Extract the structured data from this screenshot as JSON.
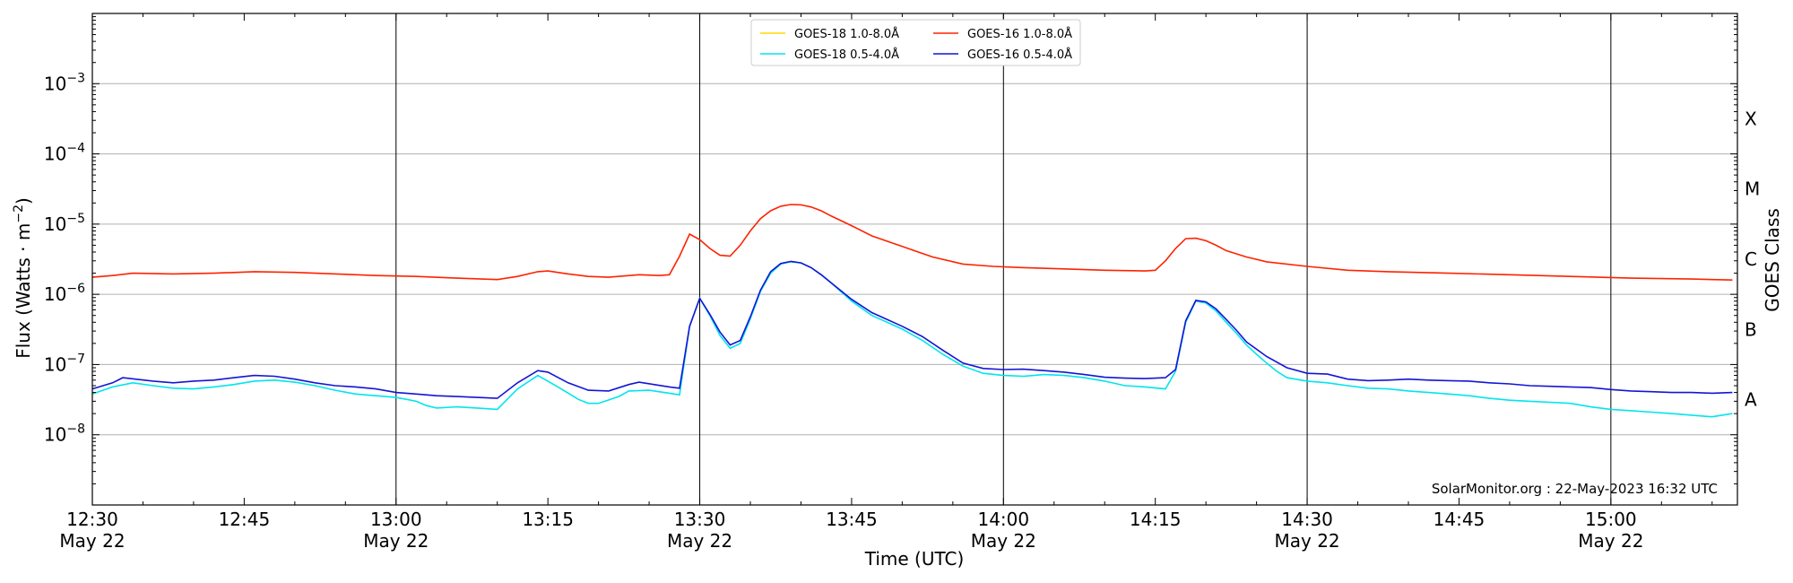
{
  "chart_data": {
    "type": "line",
    "xlabel": "Time (UTC)",
    "ylabel": "Flux (Watts · m",
    "ylabel_sup": "−2",
    "ylabel_close": ")",
    "right_label": "GOES Class",
    "y_scale": "log",
    "ylim": [
      1e-09,
      0.01
    ],
    "xlim_minutes": [
      750,
      912.5
    ],
    "grid": "horizontal at decades, vertical at half-hours",
    "legend_position": "top-center",
    "credit": "SolarMonitor.org : 22-May-2023 16:32 UTC",
    "y_ticks": [
      {
        "value": 0.001,
        "base": "10",
        "exp": "−3"
      },
      {
        "value": 0.0001,
        "base": "10",
        "exp": "−4"
      },
      {
        "value": 1e-05,
        "base": "10",
        "exp": "−5"
      },
      {
        "value": 1e-06,
        "base": "10",
        "exp": "−6"
      },
      {
        "value": 1e-07,
        "base": "10",
        "exp": "−7"
      },
      {
        "value": 1e-08,
        "base": "10",
        "exp": "−8"
      }
    ],
    "x_ticks": [
      {
        "time": "12:30",
        "line2": "May 22",
        "minute": 750
      },
      {
        "time": "12:45",
        "line2": "",
        "minute": 765
      },
      {
        "time": "13:00",
        "line2": "May 22",
        "minute": 780
      },
      {
        "time": "13:15",
        "line2": "",
        "minute": 795
      },
      {
        "time": "13:30",
        "line2": "May 22",
        "minute": 810
      },
      {
        "time": "13:45",
        "line2": "",
        "minute": 825
      },
      {
        "time": "14:00",
        "line2": "May 22",
        "minute": 840
      },
      {
        "time": "14:15",
        "line2": "",
        "minute": 855
      },
      {
        "time": "14:30",
        "line2": "May 22",
        "minute": 870
      },
      {
        "time": "14:45",
        "line2": "",
        "minute": 885
      },
      {
        "time": "15:00",
        "line2": "May 22",
        "minute": 900
      }
    ],
    "class_labels": [
      {
        "label": "X",
        "value": 0.000316
      },
      {
        "label": "M",
        "value": 3.16e-05
      },
      {
        "label": "C",
        "value": 3.16e-06
      },
      {
        "label": "B",
        "value": 3.16e-07
      },
      {
        "label": "A",
        "value": 3.16e-08
      }
    ],
    "series": [
      {
        "name": "GOES-18 1.0-8.0Å",
        "color": "#FFD700",
        "data": []
      },
      {
        "name": "GOES-18 0.5-4.0Å",
        "color": "#00E5EE",
        "data": [
          [
            750,
            3.8e-08
          ],
          [
            752,
            4.8e-08
          ],
          [
            754,
            5.5e-08
          ],
          [
            756,
            5e-08
          ],
          [
            758,
            4.6e-08
          ],
          [
            760,
            4.5e-08
          ],
          [
            762,
            4.8e-08
          ],
          [
            764,
            5.2e-08
          ],
          [
            766,
            5.8e-08
          ],
          [
            768,
            6e-08
          ],
          [
            770,
            5.6e-08
          ],
          [
            772,
            5e-08
          ],
          [
            774,
            4.3e-08
          ],
          [
            776,
            3.8e-08
          ],
          [
            778,
            3.6e-08
          ],
          [
            780,
            3.4e-08
          ],
          [
            782,
            3e-08
          ],
          [
            783,
            2.6e-08
          ],
          [
            784,
            2.4e-08
          ],
          [
            786,
            2.5e-08
          ],
          [
            788,
            2.4e-08
          ],
          [
            790,
            2.3e-08
          ],
          [
            792,
            4.5e-08
          ],
          [
            794,
            7e-08
          ],
          [
            796,
            4.8e-08
          ],
          [
            798,
            3.2e-08
          ],
          [
            799,
            2.8e-08
          ],
          [
            800,
            2.8e-08
          ],
          [
            802,
            3.5e-08
          ],
          [
            803,
            4.2e-08
          ],
          [
            805,
            4.3e-08
          ],
          [
            807,
            3.9e-08
          ],
          [
            808,
            3.7e-08
          ],
          [
            809,
            3.5e-07
          ],
          [
            810,
            8.8e-07
          ],
          [
            811,
            5e-07
          ],
          [
            812,
            2.6e-07
          ],
          [
            813,
            1.7e-07
          ],
          [
            814,
            2e-07
          ],
          [
            815,
            4.5e-07
          ],
          [
            816,
            1.1e-06
          ],
          [
            817,
            2e-06
          ],
          [
            818,
            2.7e-06
          ],
          [
            819,
            2.9e-06
          ],
          [
            820,
            2.8e-06
          ],
          [
            821,
            2.4e-06
          ],
          [
            822,
            1.9e-06
          ],
          [
            823,
            1.45e-06
          ],
          [
            825,
            8e-07
          ],
          [
            827,
            5e-07
          ],
          [
            830,
            3.2e-07
          ],
          [
            832,
            2.2e-07
          ],
          [
            834,
            1.4e-07
          ],
          [
            836,
            9.5e-08
          ],
          [
            838,
            7.5e-08
          ],
          [
            840,
            7e-08
          ],
          [
            842,
            6.8e-08
          ],
          [
            844,
            7.2e-08
          ],
          [
            846,
            7e-08
          ],
          [
            848,
            6.5e-08
          ],
          [
            850,
            5.8e-08
          ],
          [
            852,
            5e-08
          ],
          [
            854,
            4.8e-08
          ],
          [
            856,
            4.5e-08
          ],
          [
            857,
            8e-08
          ],
          [
            858,
            4e-07
          ],
          [
            859,
            8e-07
          ],
          [
            860,
            7.5e-07
          ],
          [
            861,
            5.8e-07
          ],
          [
            862,
            4e-07
          ],
          [
            863,
            2.8e-07
          ],
          [
            864,
            1.9e-07
          ],
          [
            865,
            1.4e-07
          ],
          [
            866,
            1.05e-07
          ],
          [
            867,
            8e-08
          ],
          [
            868,
            6.5e-08
          ],
          [
            870,
            5.8e-08
          ],
          [
            872,
            5.5e-08
          ],
          [
            874,
            5e-08
          ],
          [
            876,
            4.6e-08
          ],
          [
            878,
            4.5e-08
          ],
          [
            880,
            4.2e-08
          ],
          [
            882,
            4e-08
          ],
          [
            884,
            3.8e-08
          ],
          [
            886,
            3.6e-08
          ],
          [
            888,
            3.3e-08
          ],
          [
            890,
            3.1e-08
          ],
          [
            892,
            3e-08
          ],
          [
            894,
            2.9e-08
          ],
          [
            896,
            2.8e-08
          ],
          [
            898,
            2.5e-08
          ],
          [
            900,
            2.3e-08
          ],
          [
            902,
            2.2e-08
          ],
          [
            904,
            2.1e-08
          ],
          [
            906,
            2e-08
          ],
          [
            908,
            1.9e-08
          ],
          [
            910,
            1.8e-08
          ],
          [
            912,
            2e-08
          ]
        ]
      },
      {
        "name": "GOES-16 1.0-8.0Å",
        "color": "#FF2200",
        "data": [
          [
            750,
            1.75e-06
          ],
          [
            752,
            1.85e-06
          ],
          [
            754,
            2e-06
          ],
          [
            758,
            1.95e-06
          ],
          [
            762,
            2e-06
          ],
          [
            766,
            2.1e-06
          ],
          [
            770,
            2.05e-06
          ],
          [
            774,
            1.95e-06
          ],
          [
            778,
            1.85e-06
          ],
          [
            782,
            1.8e-06
          ],
          [
            786,
            1.7e-06
          ],
          [
            790,
            1.62e-06
          ],
          [
            792,
            1.8e-06
          ],
          [
            794,
            2.1e-06
          ],
          [
            795,
            2.15e-06
          ],
          [
            797,
            1.95e-06
          ],
          [
            799,
            1.8e-06
          ],
          [
            801,
            1.75e-06
          ],
          [
            804,
            1.9e-06
          ],
          [
            806,
            1.85e-06
          ],
          [
            807,
            1.9e-06
          ],
          [
            808,
            3.5e-06
          ],
          [
            809,
            7.2e-06
          ],
          [
            810,
            6e-06
          ],
          [
            811,
            4.5e-06
          ],
          [
            812,
            3.6e-06
          ],
          [
            813,
            3.5e-06
          ],
          [
            814,
            5e-06
          ],
          [
            815,
            8e-06
          ],
          [
            816,
            1.2e-05
          ],
          [
            817,
            1.55e-05
          ],
          [
            818,
            1.8e-05
          ],
          [
            819,
            1.9e-05
          ],
          [
            820,
            1.88e-05
          ],
          [
            821,
            1.75e-05
          ],
          [
            822,
            1.55e-05
          ],
          [
            823,
            1.3e-05
          ],
          [
            825,
            9.5e-06
          ],
          [
            827,
            6.8e-06
          ],
          [
            830,
            4.8e-06
          ],
          [
            833,
            3.4e-06
          ],
          [
            836,
            2.7e-06
          ],
          [
            839,
            2.5e-06
          ],
          [
            842,
            2.4e-06
          ],
          [
            846,
            2.3e-06
          ],
          [
            850,
            2.2e-06
          ],
          [
            854,
            2.15e-06
          ],
          [
            855,
            2.2e-06
          ],
          [
            856,
            3e-06
          ],
          [
            857,
            4.5e-06
          ],
          [
            858,
            6.2e-06
          ],
          [
            859,
            6.3e-06
          ],
          [
            860,
            5.8e-06
          ],
          [
            861,
            5e-06
          ],
          [
            862,
            4.2e-06
          ],
          [
            864,
            3.4e-06
          ],
          [
            866,
            2.9e-06
          ],
          [
            870,
            2.5e-06
          ],
          [
            874,
            2.2e-06
          ],
          [
            878,
            2.1e-06
          ],
          [
            884,
            2e-06
          ],
          [
            890,
            1.9e-06
          ],
          [
            896,
            1.8e-06
          ],
          [
            902,
            1.7e-06
          ],
          [
            908,
            1.65e-06
          ],
          [
            912,
            1.6e-06
          ]
        ]
      },
      {
        "name": "GOES-16 0.5-4.0Å",
        "color": "#1414D6",
        "data": [
          [
            750,
            4.5e-08
          ],
          [
            752,
            5.5e-08
          ],
          [
            753,
            6.5e-08
          ],
          [
            756,
            5.8e-08
          ],
          [
            758,
            5.5e-08
          ],
          [
            760,
            5.8e-08
          ],
          [
            762,
            6e-08
          ],
          [
            764,
            6.5e-08
          ],
          [
            766,
            7e-08
          ],
          [
            768,
            6.8e-08
          ],
          [
            770,
            6.2e-08
          ],
          [
            772,
            5.5e-08
          ],
          [
            774,
            5e-08
          ],
          [
            776,
            4.8e-08
          ],
          [
            778,
            4.5e-08
          ],
          [
            780,
            4e-08
          ],
          [
            782,
            3.8e-08
          ],
          [
            784,
            3.6e-08
          ],
          [
            786,
            3.5e-08
          ],
          [
            788,
            3.4e-08
          ],
          [
            790,
            3.3e-08
          ],
          [
            792,
            5.5e-08
          ],
          [
            794,
            8.2e-08
          ],
          [
            795,
            7.8e-08
          ],
          [
            797,
            5.5e-08
          ],
          [
            799,
            4.3e-08
          ],
          [
            801,
            4.2e-08
          ],
          [
            803,
            5.2e-08
          ],
          [
            804,
            5.6e-08
          ],
          [
            807,
            4.8e-08
          ],
          [
            808,
            4.6e-08
          ],
          [
            809,
            3.5e-07
          ],
          [
            810,
            8.8e-07
          ],
          [
            811,
            5.2e-07
          ],
          [
            812,
            2.9e-07
          ],
          [
            813,
            1.9e-07
          ],
          [
            814,
            2.2e-07
          ],
          [
            815,
            4.8e-07
          ],
          [
            816,
            1.15e-06
          ],
          [
            817,
            2.1e-06
          ],
          [
            818,
            2.75e-06
          ],
          [
            819,
            2.95e-06
          ],
          [
            820,
            2.8e-06
          ],
          [
            821,
            2.4e-06
          ],
          [
            822,
            1.9e-06
          ],
          [
            823,
            1.45e-06
          ],
          [
            825,
            8.5e-07
          ],
          [
            827,
            5.5e-07
          ],
          [
            830,
            3.5e-07
          ],
          [
            832,
            2.5e-07
          ],
          [
            834,
            1.6e-07
          ],
          [
            836,
            1.05e-07
          ],
          [
            838,
            8.8e-08
          ],
          [
            840,
            8.5e-08
          ],
          [
            842,
            8.6e-08
          ],
          [
            844,
            8.2e-08
          ],
          [
            846,
            7.8e-08
          ],
          [
            848,
            7.2e-08
          ],
          [
            850,
            6.6e-08
          ],
          [
            852,
            6.4e-08
          ],
          [
            854,
            6.3e-08
          ],
          [
            856,
            6.5e-08
          ],
          [
            857,
            8.5e-08
          ],
          [
            858,
            4.2e-07
          ],
          [
            859,
            8.2e-07
          ],
          [
            860,
            7.8e-07
          ],
          [
            861,
            6.2e-07
          ],
          [
            862,
            4.4e-07
          ],
          [
            863,
            3.1e-07
          ],
          [
            864,
            2.1e-07
          ],
          [
            866,
            1.3e-07
          ],
          [
            868,
            9e-08
          ],
          [
            870,
            7.5e-08
          ],
          [
            872,
            7.3e-08
          ],
          [
            874,
            6.2e-08
          ],
          [
            876,
            5.9e-08
          ],
          [
            878,
            6e-08
          ],
          [
            880,
            6.2e-08
          ],
          [
            882,
            6e-08
          ],
          [
            884,
            5.9e-08
          ],
          [
            886,
            5.8e-08
          ],
          [
            888,
            5.5e-08
          ],
          [
            890,
            5.3e-08
          ],
          [
            892,
            5e-08
          ],
          [
            894,
            4.9e-08
          ],
          [
            896,
            4.8e-08
          ],
          [
            898,
            4.7e-08
          ],
          [
            900,
            4.4e-08
          ],
          [
            902,
            4.2e-08
          ],
          [
            904,
            4.1e-08
          ],
          [
            906,
            4e-08
          ],
          [
            908,
            4e-08
          ],
          [
            910,
            3.9e-08
          ],
          [
            912,
            4e-08
          ]
        ]
      }
    ]
  }
}
